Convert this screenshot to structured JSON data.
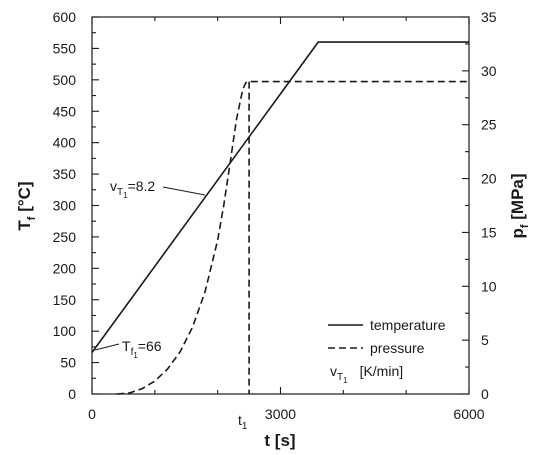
{
  "chart_data": {
    "type": "line",
    "xlabel": "t [s]",
    "ylabel_left": "T",
    "ylabel_left_sub": "f",
    "ylabel_left_unit": " [°C]",
    "ylabel_right": "p",
    "ylabel_right_sub": "f",
    "ylabel_right_unit": " [MPa]",
    "xlim": [
      0,
      6000
    ],
    "ylim_left": [
      0,
      600
    ],
    "ylim_right": [
      0,
      35
    ],
    "x_ticks": [
      "0",
      "3000",
      "6000"
    ],
    "x_tick_values": [
      0,
      3000,
      6000
    ],
    "x_marker": {
      "label": "t",
      "sub": "1",
      "value": 2500
    },
    "y_left_ticks": [
      0,
      50,
      100,
      150,
      200,
      250,
      300,
      350,
      400,
      450,
      500,
      550,
      600
    ],
    "y_left_tick_labels": [
      "0",
      "50",
      "100",
      "150",
      "200",
      "250",
      "300",
      "350",
      "400",
      "450",
      "500",
      "550",
      "600"
    ],
    "y_right_ticks": [
      0,
      5,
      10,
      15,
      20,
      25,
      30,
      35
    ],
    "y_right_tick_labels": [
      "0",
      "5",
      "10",
      "15",
      "20",
      "25",
      "30",
      "35"
    ],
    "grid": false,
    "legend_position": "bottom-right",
    "series": [
      {
        "name": "temperature",
        "axis": "left",
        "style": "solid",
        "x": [
          0,
          3600,
          6000
        ],
        "y": [
          66,
          560,
          560
        ]
      },
      {
        "name": "pressure",
        "axis": "right",
        "style": "dashed",
        "x": [
          400,
          600,
          800,
          1000,
          1200,
          1400,
          1600,
          1800,
          2000,
          2100,
          2200,
          2300,
          2400,
          2450,
          2500,
          2500,
          6000
        ],
        "y": [
          0,
          0.1,
          0.5,
          1.2,
          2.3,
          3.9,
          6.2,
          9.5,
          14.3,
          17.6,
          21.5,
          25.5,
          28.3,
          28.9,
          29.0,
          29.0,
          29.0
        ]
      }
    ],
    "t1_drop": {
      "x": 2500,
      "y_from": 29,
      "y_to": 0
    },
    "annotations": [
      {
        "text": "v",
        "sub": "T",
        "sub2": "1",
        "tail": "=8.2"
      },
      {
        "text": "T",
        "sub": "f",
        "sub2": "1",
        "tail": "=66"
      }
    ],
    "legend_unit": {
      "text": "v",
      "sub": "T",
      "sub2": "1",
      "tail": "[K/min]"
    }
  }
}
